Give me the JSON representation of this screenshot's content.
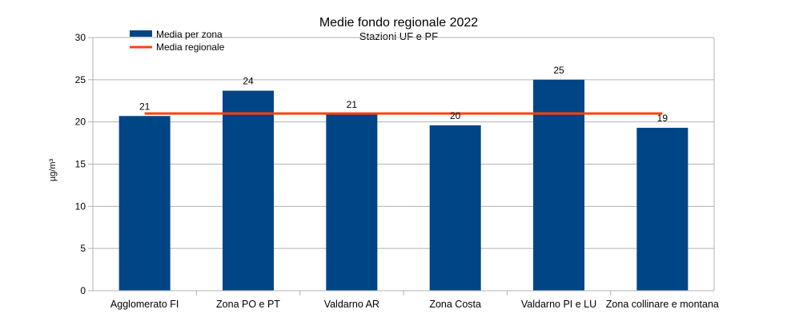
{
  "chart_data": {
    "type": "bar",
    "title": "Medie fondo regionale 2022",
    "subtitle": "Stazioni UF e PF",
    "xlabel": "",
    "ylabel": "µg/m³",
    "ylim": [
      0,
      30
    ],
    "yticks": [
      0,
      5,
      10,
      15,
      20,
      25,
      30
    ],
    "grid": true,
    "categories": [
      "Agglomerato FI",
      "Zona PO e PT",
      "Valdarno AR",
      "Zona Costa",
      "Valdarno PI e LU",
      "Zona collinare e montana"
    ],
    "series": [
      {
        "name": "Media per zona",
        "type": "bar",
        "color": "#004586",
        "values": [
          20.7,
          23.7,
          20.9,
          19.6,
          25.0,
          19.3
        ],
        "labels": [
          "21",
          "24",
          "21",
          "20",
          "25",
          "19"
        ]
      },
      {
        "name": "Media regionale",
        "type": "line",
        "color": "#ff420e",
        "values": [
          21,
          21,
          21,
          21,
          21,
          21
        ]
      }
    ],
    "legend_position": "top-left"
  }
}
